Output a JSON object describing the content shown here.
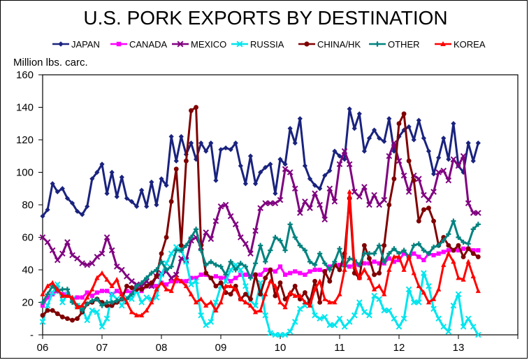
{
  "chart_data": {
    "type": "line",
    "title": "U.S. PORK EXPORTS BY DESTINATION",
    "ylabel": "Million lbs. carc.",
    "xlabel": "",
    "ylim": [
      0,
      160
    ],
    "yticks": [
      {
        "value": 0,
        "label": "-"
      },
      {
        "value": 20,
        "label": "20"
      },
      {
        "value": 40,
        "label": "40"
      },
      {
        "value": 60,
        "label": "60"
      },
      {
        "value": 80,
        "label": "80"
      },
      {
        "value": 100,
        "label": "100"
      },
      {
        "value": 120,
        "label": "120"
      },
      {
        "value": 140,
        "label": "140"
      },
      {
        "value": 160,
        "label": "160"
      }
    ],
    "x_start": 2006.0,
    "x_step": 0.08333,
    "xticks": [
      {
        "value": 2006,
        "label": "06"
      },
      {
        "value": 2007,
        "label": "07"
      },
      {
        "value": 2008,
        "label": "08"
      },
      {
        "value": 2009,
        "label": "09"
      },
      {
        "value": 2010,
        "label": "10"
      },
      {
        "value": 2011,
        "label": "11"
      },
      {
        "value": 2012,
        "label": "12"
      },
      {
        "value": 2013,
        "label": "13"
      }
    ],
    "xlim": [
      2006,
      2014
    ],
    "grid": false,
    "legend_position": "top",
    "series": [
      {
        "name": "JAPAN",
        "color": "#1a237e",
        "marker": "diamond",
        "values": [
          73,
          77,
          93,
          88,
          90,
          84,
          81,
          76,
          74,
          79,
          96,
          100,
          105,
          87,
          100,
          85,
          97,
          84,
          82,
          79,
          89,
          79,
          94,
          80,
          96,
          92,
          122,
          107,
          122,
          111,
          118,
          108,
          118,
          113,
          118,
          95,
          114,
          115,
          114,
          118,
          104,
          93,
          110,
          93,
          100,
          103,
          105,
          87,
          108,
          105,
          127,
          118,
          133,
          104,
          96,
          92,
          90,
          98,
          101,
          113,
          110,
          108,
          139,
          127,
          136,
          113,
          121,
          126,
          121,
          119,
          133,
          113,
          122,
          126,
          128,
          120,
          132,
          121,
          113,
          99,
          109,
          121,
          108,
          130,
          104,
          100,
          118,
          107,
          118
        ]
      },
      {
        "name": "CANADA",
        "color": "#ff00ff",
        "marker": "square",
        "values": [
          18,
          23,
          25,
          27,
          25,
          25,
          22,
          23,
          23,
          26,
          24,
          26,
          27,
          27,
          25,
          27,
          25,
          27,
          26,
          30,
          27,
          30,
          30,
          30,
          32,
          31,
          33,
          33,
          33,
          33,
          35,
          35,
          37,
          37,
          35,
          36,
          35,
          35,
          33,
          35,
          37,
          37,
          36,
          37,
          37,
          40,
          40,
          39,
          42,
          37,
          38,
          39,
          38,
          37,
          39,
          40,
          40,
          39,
          42,
          43,
          43,
          43,
          42,
          43,
          43,
          44,
          44,
          45,
          44,
          44,
          47,
          45,
          46,
          50,
          48,
          50,
          48,
          46,
          50,
          49,
          50,
          51,
          52,
          52,
          52,
          53,
          53,
          52,
          52
        ]
      },
      {
        "name": "MEXICO",
        "color": "#800080",
        "marker": "x",
        "values": [
          60,
          57,
          52,
          46,
          50,
          57,
          49,
          47,
          44,
          43,
          44,
          48,
          50,
          60,
          52,
          42,
          40,
          36,
          33,
          31,
          30,
          33,
          30,
          36,
          38,
          39,
          35,
          37,
          47,
          46,
          58,
          60,
          54,
          63,
          59,
          70,
          79,
          80,
          73,
          68,
          60,
          56,
          50,
          64,
          78,
          81,
          81,
          81,
          83,
          102,
          100,
          90,
          75,
          82,
          78,
          87,
          80,
          71,
          90,
          82,
          105,
          113,
          105,
          88,
          85,
          91,
          80,
          86,
          80,
          83,
          110,
          118,
          107,
          98,
          88,
          98,
          96,
          86,
          83,
          88,
          100,
          101,
          95,
          108,
          104,
          110,
          81,
          75,
          75
        ]
      },
      {
        "name": "RUSSIA",
        "color": "#00e5ee",
        "marker": "x",
        "values": [
          8,
          18,
          26,
          31,
          20,
          25,
          22,
          18,
          16,
          9,
          15,
          14,
          5,
          10,
          25,
          22,
          18,
          23,
          22,
          27,
          20,
          23,
          22,
          23,
          37,
          44,
          50,
          54,
          52,
          45,
          31,
          33,
          12,
          6,
          8,
          20,
          30,
          33,
          40,
          43,
          40,
          30,
          21,
          18,
          32,
          12,
          1,
          0,
          0,
          0,
          2,
          8,
          16,
          18,
          22,
          12,
          10,
          11,
          6,
          6,
          10,
          5,
          8,
          12,
          20,
          14,
          12,
          24,
          22,
          15,
          15,
          10,
          5,
          10,
          28,
          20,
          20,
          38,
          30,
          16,
          10,
          5,
          2,
          18,
          25,
          5,
          10,
          5,
          0
        ]
      },
      {
        "name": "CHINA/HK",
        "color": "#800000",
        "marker": "circle",
        "values": [
          12,
          15,
          15,
          13,
          11,
          10,
          9,
          10,
          14,
          19,
          20,
          22,
          20,
          18,
          18,
          20,
          22,
          30,
          29,
          28,
          28,
          30,
          32,
          36,
          50,
          60,
          82,
          102,
          55,
          107,
          138,
          140,
          55,
          38,
          35,
          30,
          32,
          26,
          25,
          30,
          22,
          25,
          22,
          37,
          25,
          35,
          40,
          24,
          32,
          22,
          25,
          30,
          22,
          26,
          20,
          33,
          20,
          39,
          33,
          43,
          40,
          50,
          84,
          38,
          35,
          55,
          47,
          37,
          38,
          55,
          80,
          96,
          130,
          136,
          107,
          95,
          70,
          77,
          78,
          70,
          55,
          60,
          55,
          52,
          55,
          48,
          53,
          50,
          48
        ]
      },
      {
        "name": "OTHER",
        "color": "#00827f",
        "marker": "plus",
        "values": [
          20,
          25,
          30,
          27,
          28,
          28,
          20,
          18,
          15,
          19,
          21,
          22,
          18,
          20,
          20,
          21,
          22,
          22,
          25,
          30,
          32,
          35,
          38,
          40,
          45,
          40,
          42,
          52,
          52,
          55,
          60,
          65,
          52,
          43,
          45,
          43,
          42,
          37,
          45,
          40,
          44,
          42,
          35,
          44,
          55,
          45,
          52,
          60,
          58,
          52,
          68,
          60,
          55,
          52,
          45,
          43,
          50,
          44,
          40,
          45,
          53,
          42,
          47,
          46,
          43,
          50,
          50,
          50,
          55,
          45,
          50,
          53,
          50,
          52,
          48,
          55,
          56,
          52,
          50,
          54,
          55,
          58,
          62,
          70,
          60,
          57,
          56,
          65,
          68
        ]
      },
      {
        "name": "KOREA",
        "color": "#ff0000",
        "marker": "triangle",
        "values": [
          25,
          30,
          32,
          28,
          24,
          24,
          23,
          17,
          18,
          23,
          28,
          35,
          38,
          34,
          30,
          34,
          25,
          20,
          14,
          12,
          12,
          15,
          20,
          28,
          32,
          28,
          27,
          35,
          33,
          30,
          25,
          20,
          22,
          18,
          20,
          15,
          20,
          30,
          30,
          28,
          22,
          20,
          18,
          14,
          15,
          25,
          33,
          30,
          20,
          17,
          26,
          24,
          24,
          20,
          18,
          28,
          33,
          22,
          20,
          20,
          25,
          40,
          88,
          42,
          35,
          40,
          35,
          28,
          30,
          25,
          40,
          48,
          48,
          40,
          48,
          38,
          30,
          26,
          20,
          22,
          28,
          43,
          50,
          45,
          35,
          34,
          45,
          36,
          27
        ]
      }
    ]
  }
}
